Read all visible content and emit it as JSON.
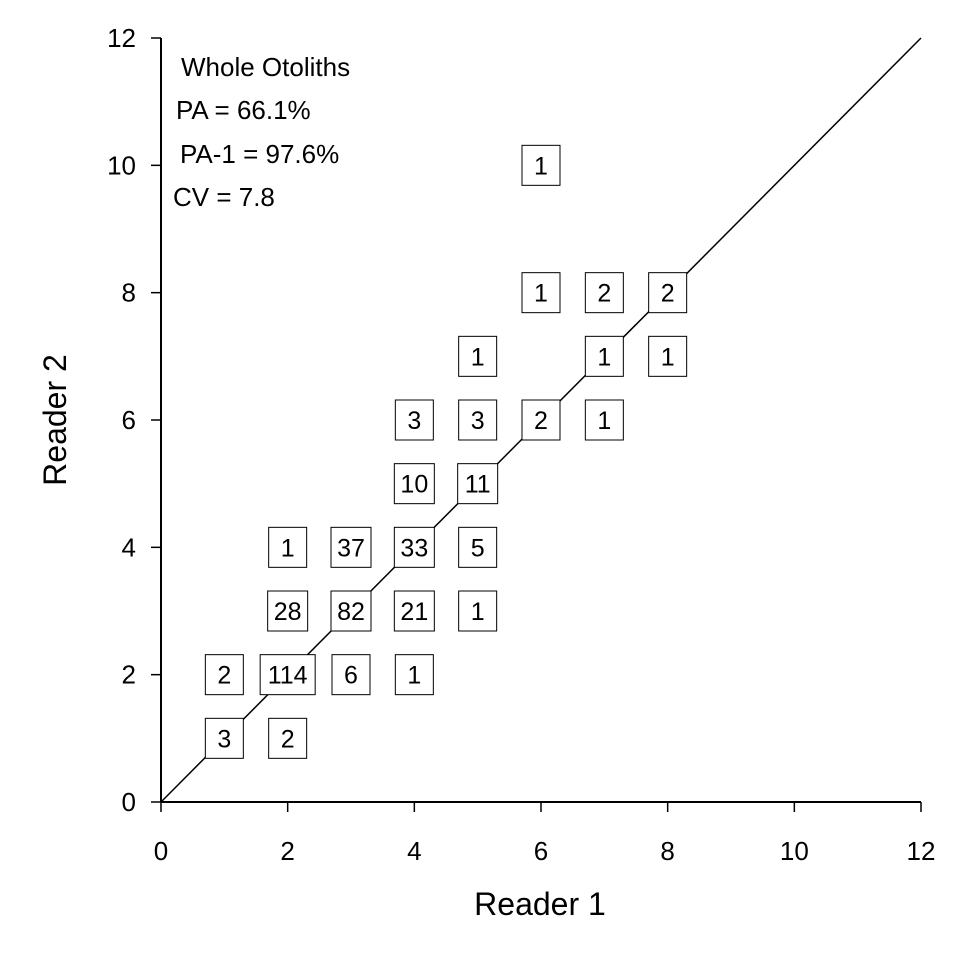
{
  "chart_data": {
    "type": "scatter",
    "xlabel": "Reader 1",
    "ylabel": "Reader 2",
    "xlim": [
      0,
      12
    ],
    "ylim": [
      0,
      12
    ],
    "x_ticks": [
      0,
      2,
      4,
      6,
      8,
      10,
      12
    ],
    "y_ticks": [
      0,
      2,
      4,
      6,
      8,
      10,
      12
    ],
    "grid": false,
    "reference_line": {
      "type": "1:1",
      "from": [
        0,
        0
      ],
      "to": [
        12,
        12
      ]
    },
    "annotations": {
      "title": "Whole Otoliths",
      "pa": "PA = 66.1%",
      "pa1": "PA-1 = 97.6%",
      "cv": "CV = 7.8"
    },
    "points": [
      {
        "x": 1,
        "y": 1,
        "count": 3
      },
      {
        "x": 2,
        "y": 1,
        "count": 2
      },
      {
        "x": 1,
        "y": 2,
        "count": 2
      },
      {
        "x": 2,
        "y": 2,
        "count": 114
      },
      {
        "x": 3,
        "y": 2,
        "count": 6
      },
      {
        "x": 4,
        "y": 2,
        "count": 1
      },
      {
        "x": 2,
        "y": 3,
        "count": 28
      },
      {
        "x": 3,
        "y": 3,
        "count": 82
      },
      {
        "x": 4,
        "y": 3,
        "count": 21
      },
      {
        "x": 5,
        "y": 3,
        "count": 1
      },
      {
        "x": 2,
        "y": 4,
        "count": 1
      },
      {
        "x": 3,
        "y": 4,
        "count": 37
      },
      {
        "x": 4,
        "y": 4,
        "count": 33
      },
      {
        "x": 5,
        "y": 4,
        "count": 5
      },
      {
        "x": 4,
        "y": 5,
        "count": 10
      },
      {
        "x": 5,
        "y": 5,
        "count": 11
      },
      {
        "x": 4,
        "y": 6,
        "count": 3
      },
      {
        "x": 5,
        "y": 6,
        "count": 3
      },
      {
        "x": 6,
        "y": 6,
        "count": 2
      },
      {
        "x": 7,
        "y": 6,
        "count": 1
      },
      {
        "x": 5,
        "y": 7,
        "count": 1
      },
      {
        "x": 7,
        "y": 7,
        "count": 1
      },
      {
        "x": 8,
        "y": 7,
        "count": 1
      },
      {
        "x": 6,
        "y": 8,
        "count": 1
      },
      {
        "x": 7,
        "y": 8,
        "count": 2
      },
      {
        "x": 8,
        "y": 8,
        "count": 2
      },
      {
        "x": 6,
        "y": 10,
        "count": 1
      }
    ]
  }
}
